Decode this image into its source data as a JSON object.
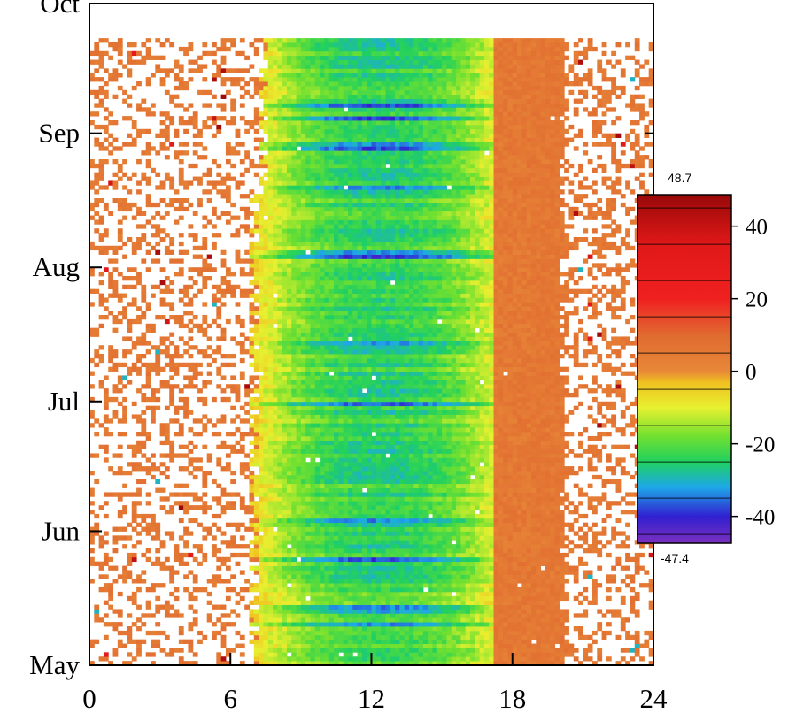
{
  "chart_data": {
    "type": "heatmap",
    "title": "",
    "xlabel": "",
    "ylabel": "",
    "x_ticks": [
      0,
      6,
      12,
      18,
      24
    ],
    "x_tick_labels": [
      "0",
      "6",
      "12",
      "18",
      "24"
    ],
    "xlim": [
      0,
      24
    ],
    "y_ticks": [
      "2000-05-01",
      "2000-06-01",
      "2000-07-01",
      "2000-08-01",
      "2000-09-01",
      "2000-10-01"
    ],
    "y_tick_labels": [
      "May",
      "Jun",
      "Jul",
      "Aug",
      "Sep",
      "Oct"
    ],
    "ylim": [
      "2000-05-01",
      "2000-10-01"
    ],
    "data_extent": {
      "date_range": [
        "2000-05-01",
        "2000-09-22"
      ],
      "hour_range": [
        0,
        24
      ],
      "typical_daytime_coverage_hours": [
        7,
        20
      ]
    },
    "colorbar": {
      "min": -47.4,
      "max": 48.7,
      "max_label": "48.7",
      "min_label": "-47.4",
      "ticks": [
        40,
        20,
        0,
        -20,
        -40
      ],
      "tick_labels": [
        "40",
        "20",
        "0",
        "-20",
        "-40"
      ],
      "colormap": [
        {
          "value": -47.4,
          "color": "#7b2fbf"
        },
        {
          "value": -40,
          "color": "#3020d0"
        },
        {
          "value": -32,
          "color": "#1ea8e8"
        },
        {
          "value": -25,
          "color": "#20d060"
        },
        {
          "value": -18,
          "color": "#70e030"
        },
        {
          "value": -10,
          "color": "#e8f030"
        },
        {
          "value": -3,
          "color": "#f0c020"
        },
        {
          "value": 0,
          "color": "#e88838"
        },
        {
          "value": 10,
          "color": "#e06a30"
        },
        {
          "value": 20,
          "color": "#f02020"
        },
        {
          "value": 35,
          "color": "#e01818"
        },
        {
          "value": 48.7,
          "color": "#980808"
        }
      ]
    },
    "grid": false,
    "legend": "right",
    "missing_color": "#ffffff"
  }
}
